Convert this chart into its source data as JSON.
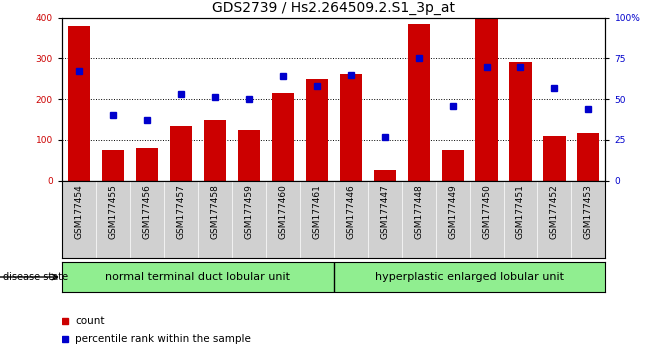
{
  "title": "GDS2739 / Hs2.264509.2.S1_3p_at",
  "samples": [
    "GSM177454",
    "GSM177455",
    "GSM177456",
    "GSM177457",
    "GSM177458",
    "GSM177459",
    "GSM177460",
    "GSM177461",
    "GSM177446",
    "GSM177447",
    "GSM177448",
    "GSM177449",
    "GSM177450",
    "GSM177451",
    "GSM177452",
    "GSM177453"
  ],
  "counts": [
    380,
    75,
    80,
    133,
    148,
    124,
    215,
    249,
    262,
    25,
    385,
    75,
    398,
    290,
    110,
    118
  ],
  "percentiles": [
    67,
    40,
    37,
    53,
    51,
    50,
    64,
    58,
    65,
    27,
    75,
    46,
    70,
    70,
    57,
    44
  ],
  "group1_label": "normal terminal duct lobular unit",
  "group2_label": "hyperplastic enlarged lobular unit",
  "group1_count": 8,
  "group2_count": 8,
  "bar_color": "#cc0000",
  "dot_color": "#0000cc",
  "group_bg": "#90ee90",
  "xtick_bg": "#d0d0d0",
  "ylim_left": [
    0,
    400
  ],
  "ylim_right": [
    0,
    100
  ],
  "yticks_left": [
    0,
    100,
    200,
    300,
    400
  ],
  "yticks_right": [
    0,
    25,
    50,
    75,
    100
  ],
  "yticklabels_right": [
    "0",
    "25",
    "50",
    "75",
    "100%"
  ],
  "disease_state_label": "disease state",
  "legend_count_label": "count",
  "legend_percentile_label": "percentile rank within the sample",
  "title_fontsize": 10,
  "tick_fontsize": 6.5,
  "label_fontsize": 8
}
